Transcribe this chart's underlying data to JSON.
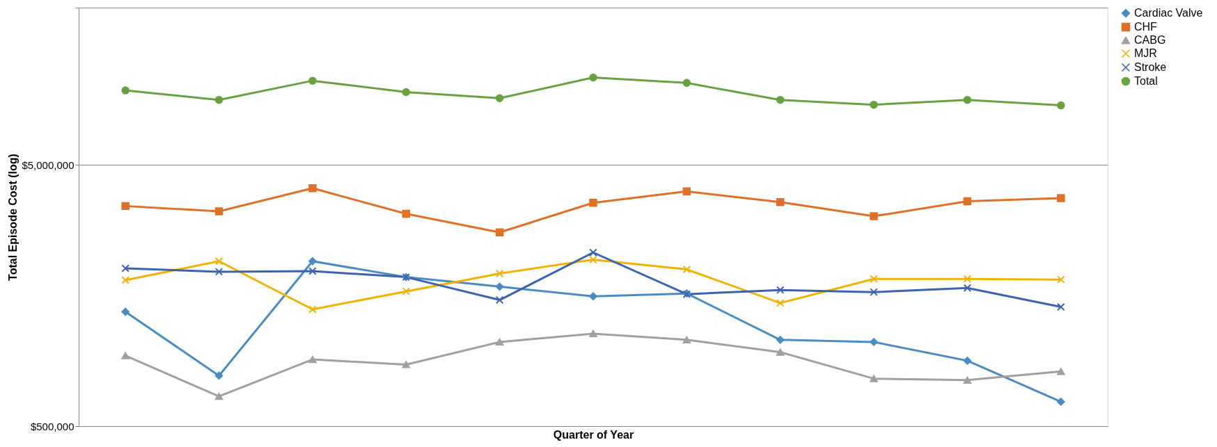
{
  "chart_data": {
    "type": "line",
    "xlabel": "Quarter of Year",
    "ylabel": "Total Episode Cost (log)",
    "categories": [
      null,
      null,
      null,
      null,
      null,
      null,
      null,
      null,
      null,
      null,
      null
    ],
    "log": "y",
    "ylim": [
      500000,
      20000000
    ],
    "yticks": [
      {
        "value": 500000,
        "label": "$500,000"
      },
      {
        "value": 5000000,
        "label": "$5,000,000"
      },
      {
        "value": 20000000,
        "label": null
      }
    ],
    "grid": "y",
    "legend": "right",
    "tick_labels": "y",
    "series": [
      {
        "name": "Cardiac Valve",
        "color": "#4a8bc4",
        "marker": "diamond",
        "values": [
          1370000,
          780000,
          2140000,
          1860000,
          1710000,
          1570000,
          1610000,
          1070000,
          1050000,
          890000,
          620000
        ]
      },
      {
        "name": "CHF",
        "color": "#e07028",
        "marker": "square",
        "values": [
          3480000,
          3320000,
          4070000,
          3250000,
          2760000,
          3580000,
          3960000,
          3600000,
          3180000,
          3630000,
          3730000
        ]
      },
      {
        "name": "CABG",
        "color": "#a0a0a0",
        "marker": "triangle",
        "values": [
          930000,
          650000,
          900000,
          860000,
          1050000,
          1130000,
          1070000,
          960000,
          760000,
          750000,
          810000
        ]
      },
      {
        "name": "MJR",
        "color": "#f0b400",
        "marker": "cross",
        "values": [
          1810000,
          2140000,
          1400000,
          1640000,
          1920000,
          2170000,
          1990000,
          1480000,
          1830000,
          1830000,
          1820000
        ]
      },
      {
        "name": "Stroke",
        "color": "#3c62b0",
        "marker": "cross",
        "values": [
          2010000,
          1950000,
          1960000,
          1860000,
          1520000,
          2310000,
          1600000,
          1660000,
          1630000,
          1690000,
          1430000
        ]
      },
      {
        "name": "Total",
        "color": "#6aa040",
        "marker": "circle",
        "values": [
          9640000,
          8870000,
          10500000,
          9500000,
          9000000,
          10800000,
          10300000,
          8870000,
          8500000,
          8870000,
          8450000
        ]
      }
    ]
  }
}
